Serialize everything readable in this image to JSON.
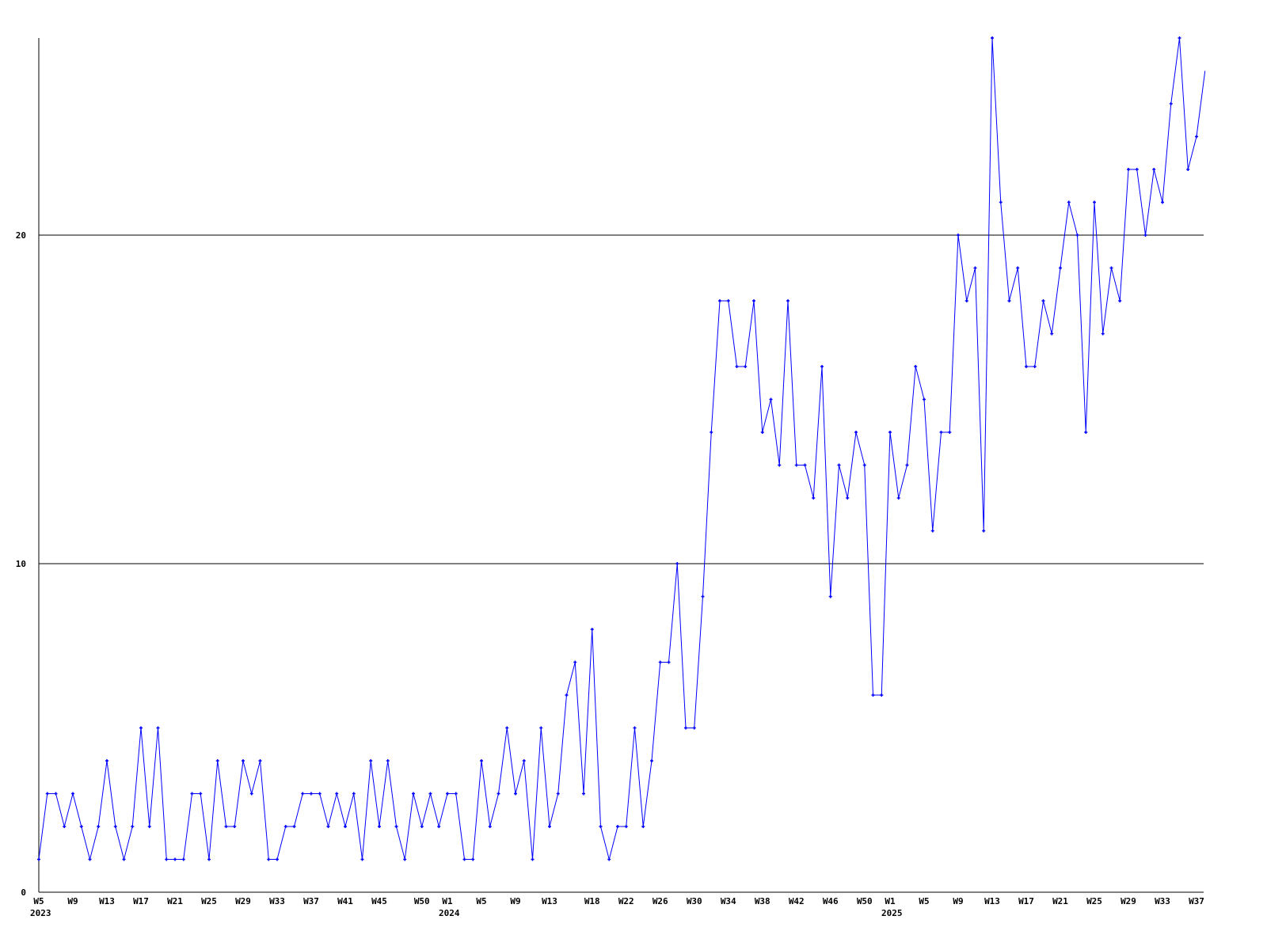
{
  "chart_data": {
    "type": "line",
    "title": "",
    "xlabel": "",
    "ylabel": "",
    "x_start": "2023-W05",
    "x_end": "2025-W38",
    "x_step": "1 week",
    "ylim": [
      0,
      26
    ],
    "grid": "horizontal lines at 10 and 20",
    "legend": "none",
    "line_color": "#0000ff",
    "axis_color": "#000000",
    "y_ticks": [
      {
        "value": 0,
        "label": "0"
      },
      {
        "value": 10,
        "label": "10"
      },
      {
        "value": 20,
        "label": "20"
      }
    ],
    "x_ticks": [
      {
        "x": "2023-W05",
        "label": "W5",
        "year": "2023"
      },
      {
        "x": "2023-W09",
        "label": "W9"
      },
      {
        "x": "2023-W13",
        "label": "W13"
      },
      {
        "x": "2023-W17",
        "label": "W17"
      },
      {
        "x": "2023-W21",
        "label": "W21"
      },
      {
        "x": "2023-W25",
        "label": "W25"
      },
      {
        "x": "2023-W29",
        "label": "W29"
      },
      {
        "x": "2023-W33",
        "label": "W33"
      },
      {
        "x": "2023-W37",
        "label": "W37"
      },
      {
        "x": "2023-W41",
        "label": "W41"
      },
      {
        "x": "2023-W45",
        "label": "W45"
      },
      {
        "x": "2023-W50",
        "label": "W50"
      },
      {
        "x": "2024-W01",
        "label": "W1",
        "year": "2024"
      },
      {
        "x": "2024-W05",
        "label": "W5"
      },
      {
        "x": "2024-W09",
        "label": "W9"
      },
      {
        "x": "2024-W13",
        "label": "W13"
      },
      {
        "x": "2024-W18",
        "label": "W18"
      },
      {
        "x": "2024-W22",
        "label": "W22"
      },
      {
        "x": "2024-W26",
        "label": "W26"
      },
      {
        "x": "2024-W30",
        "label": "W30"
      },
      {
        "x": "2024-W34",
        "label": "W34"
      },
      {
        "x": "2024-W38",
        "label": "W38"
      },
      {
        "x": "2024-W42",
        "label": "W42"
      },
      {
        "x": "2024-W46",
        "label": "W46"
      },
      {
        "x": "2024-W50",
        "label": "W50"
      },
      {
        "x": "2025-W01",
        "label": "W1",
        "year": "2025"
      },
      {
        "x": "2025-W05",
        "label": "W5"
      },
      {
        "x": "2025-W09",
        "label": "W9"
      },
      {
        "x": "2025-W13",
        "label": "W13"
      },
      {
        "x": "2025-W17",
        "label": "W17"
      },
      {
        "x": "2025-W21",
        "label": "W21"
      },
      {
        "x": "2025-W25",
        "label": "W25"
      },
      {
        "x": "2025-W29",
        "label": "W29"
      },
      {
        "x": "2025-W33",
        "label": "W33"
      },
      {
        "x": "2025-W37",
        "label": "W37"
      }
    ],
    "values": [
      1,
      3,
      3,
      2,
      3,
      2,
      1,
      2,
      4,
      2,
      1,
      2,
      5,
      2,
      5,
      1,
      1,
      1,
      3,
      3,
      1,
      4,
      2,
      2,
      4,
      3,
      4,
      1,
      1,
      2,
      2,
      3,
      3,
      3,
      2,
      3,
      2,
      3,
      1,
      4,
      2,
      4,
      2,
      1,
      3,
      2,
      3,
      2,
      3,
      3,
      1,
      1,
      4,
      2,
      3,
      5,
      3,
      4,
      1,
      5,
      2,
      3,
      6,
      7,
      3,
      8,
      2,
      1,
      2,
      2,
      5,
      2,
      4,
      7,
      7,
      10,
      5,
      5,
      9,
      14,
      18,
      18,
      16,
      16,
      18,
      14,
      15,
      13,
      18,
      13,
      13,
      12,
      16,
      9,
      13,
      12,
      14,
      13,
      6,
      6,
      14,
      12,
      13,
      16,
      15,
      11,
      14,
      14,
      20,
      18,
      19,
      11,
      26,
      21,
      18,
      19,
      16,
      16,
      18,
      17,
      19,
      21,
      20,
      14,
      21,
      17,
      19,
      18,
      22,
      22,
      20,
      22,
      21,
      24,
      26,
      22,
      23,
      25
    ]
  }
}
